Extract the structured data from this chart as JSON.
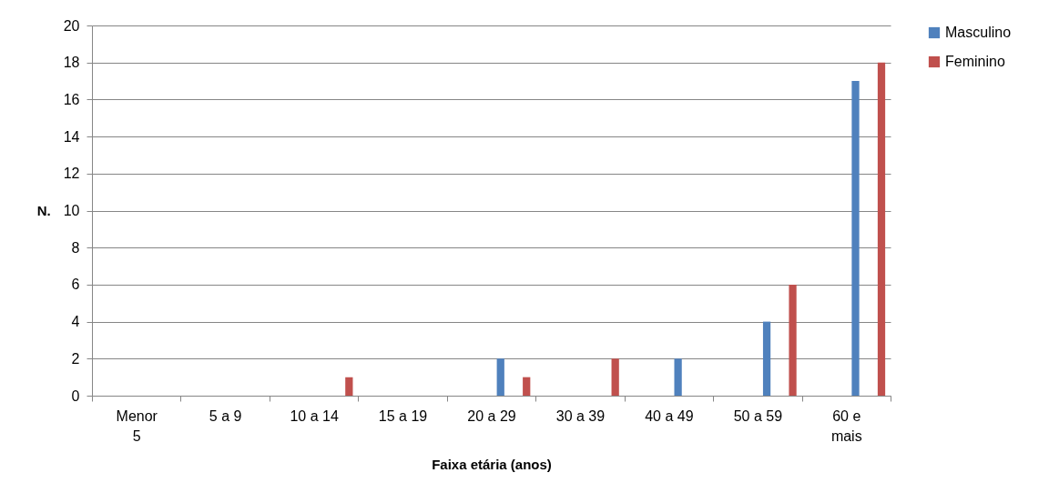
{
  "chart_data": {
    "type": "bar",
    "xlabel": "Faixa etária (anos)",
    "ylabel": "N.",
    "categories": [
      "Menor 5",
      "5 a 9",
      "10 a 14",
      "15 a 19",
      "20 a 29",
      "30 a 39",
      "40 a 49",
      "50 a 59",
      "60 e mais"
    ],
    "series": [
      {
        "name": "Masculino",
        "color": "#4f81bd",
        "values": [
          0,
          0,
          0,
          0,
          2,
          0,
          2,
          4,
          17
        ]
      },
      {
        "name": "Feminino",
        "color": "#c0504d",
        "values": [
          0,
          0,
          1,
          0,
          1,
          2,
          0,
          6,
          18
        ]
      }
    ],
    "ylim": [
      0,
      20
    ],
    "yticks": [
      0,
      2,
      4,
      6,
      8,
      10,
      12,
      14,
      16,
      18,
      20
    ],
    "grid": "y",
    "legend": "right"
  }
}
